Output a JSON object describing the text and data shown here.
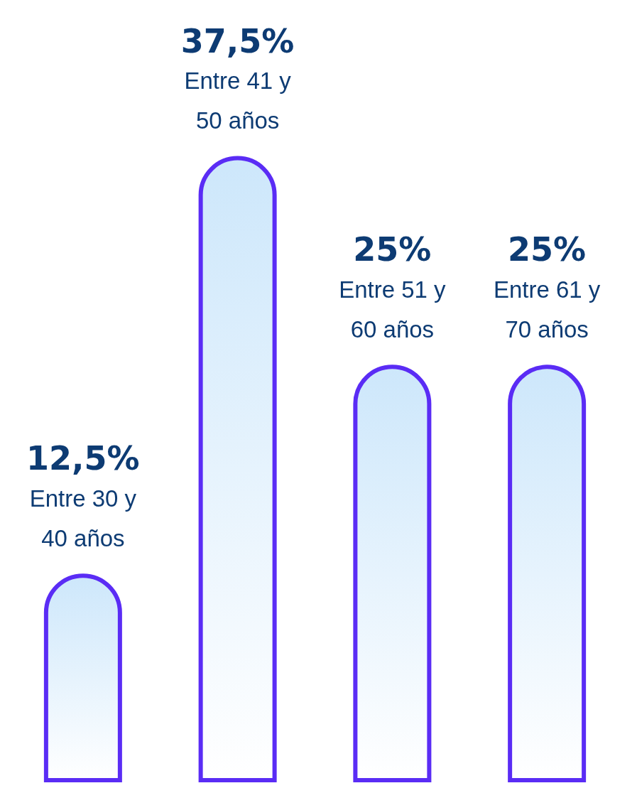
{
  "chart_data": {
    "type": "bar",
    "categories": [
      "Entre 30 y 40 años",
      "Entre 41 y 50 años",
      "Entre 51 y 60 años",
      "Entre 61 y 70 años"
    ],
    "values": [
      12.5,
      37.5,
      25,
      25
    ],
    "value_labels": [
      "12,5%",
      "37,5%",
      "25%",
      "25%"
    ],
    "color": "#5a2cf5"
  }
}
